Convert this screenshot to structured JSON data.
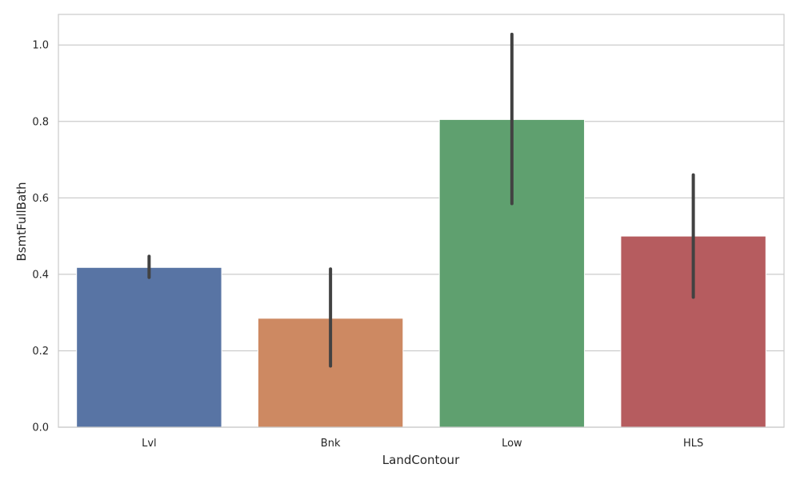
{
  "chart_data": {
    "type": "bar",
    "title": "",
    "xlabel": "LandContour",
    "ylabel": "BsmtFullBath",
    "categories": [
      "Lvl",
      "Bnk",
      "Low",
      "HLS"
    ],
    "values": [
      0.418,
      0.285,
      0.805,
      0.5
    ],
    "error_low": [
      0.392,
      0.16,
      0.585,
      0.34
    ],
    "error_high": [
      0.447,
      0.414,
      1.028,
      0.66
    ],
    "colors": [
      "#5874a4",
      "#cd8962",
      "#5fa06f",
      "#b65c5f"
    ],
    "ylim": [
      0,
      1.08
    ],
    "yticks": [
      0.0,
      0.2,
      0.4,
      0.6,
      0.8,
      1.0
    ],
    "ytick_labels": [
      "0.0",
      "0.2",
      "0.4",
      "0.6",
      "0.8",
      "1.0"
    ],
    "grid": "horizontal",
    "legend": "none"
  }
}
